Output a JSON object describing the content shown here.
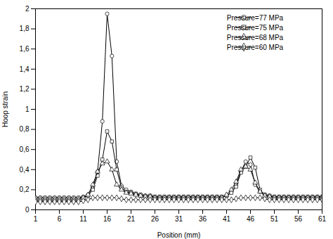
{
  "chart_data": {
    "type": "line",
    "xlabel": "Position (mm)",
    "ylabel": "Hoop strain",
    "xlim": [
      1,
      61
    ],
    "ylim": [
      0,
      2
    ],
    "xticks": [
      1,
      6,
      11,
      16,
      21,
      26,
      31,
      36,
      41,
      46,
      51,
      56,
      61
    ],
    "yticks": [
      0,
      {
        "value": 0.2,
        "label": "0,2"
      },
      {
        "value": 0.4,
        "label": "0,4"
      },
      {
        "value": 0.6,
        "label": "0,6"
      },
      {
        "value": 0.8,
        "label": "0,8"
      },
      1,
      {
        "value": 1.2,
        "label": "1,2"
      },
      {
        "value": 1.4,
        "label": "1,4"
      },
      {
        "value": 1.6,
        "label": "1,6"
      },
      {
        "value": 1.8,
        "label": "1,8"
      },
      2
    ],
    "grid": false,
    "legend": "upper right",
    "x": [
      1,
      2,
      3,
      4,
      5,
      6,
      7,
      8,
      9,
      10,
      11,
      12,
      13,
      14,
      15,
      16,
      17,
      18,
      19,
      20,
      21,
      22,
      23,
      24,
      25,
      26,
      27,
      28,
      29,
      30,
      31,
      32,
      33,
      34,
      35,
      36,
      37,
      38,
      39,
      40,
      41,
      42,
      43,
      44,
      45,
      46,
      47,
      48,
      49,
      50,
      51,
      52,
      53,
      54,
      55,
      56,
      57,
      58,
      59,
      60,
      61
    ],
    "series": [
      {
        "name": "Pressure=77 MPa",
        "color": "black",
        "marker": "circle",
        "values": [
          0.12,
          0.12,
          0.12,
          0.12,
          0.12,
          0.12,
          0.12,
          0.12,
          0.12,
          0.12,
          0.13,
          0.15,
          0.22,
          0.38,
          0.88,
          1.95,
          1.53,
          0.48,
          0.24,
          0.2,
          0.18,
          0.16,
          0.15,
          0.14,
          0.14,
          0.13,
          0.13,
          0.13,
          0.13,
          0.13,
          0.13,
          0.13,
          0.13,
          0.13,
          0.13,
          0.13,
          0.13,
          0.13,
          0.13,
          0.13,
          0.14,
          0.18,
          0.25,
          0.38,
          0.48,
          0.45,
          0.25,
          0.18,
          0.15,
          0.14,
          0.13,
          0.13,
          0.13,
          0.13,
          0.13,
          0.13,
          0.13,
          0.13,
          0.13,
          0.13,
          0.13
        ]
      },
      {
        "name": "Pressure=75 MPa",
        "color": "black",
        "marker": "square",
        "values": [
          0.12,
          0.12,
          0.12,
          0.12,
          0.12,
          0.12,
          0.12,
          0.12,
          0.12,
          0.12,
          0.12,
          0.14,
          0.2,
          0.34,
          0.5,
          0.78,
          0.68,
          0.4,
          0.22,
          0.18,
          0.17,
          0.16,
          0.15,
          0.14,
          0.14,
          0.13,
          0.13,
          0.13,
          0.13,
          0.13,
          0.13,
          0.13,
          0.13,
          0.13,
          0.13,
          0.13,
          0.13,
          0.13,
          0.13,
          0.13,
          0.14,
          0.17,
          0.23,
          0.37,
          0.43,
          0.52,
          0.42,
          0.2,
          0.15,
          0.14,
          0.13,
          0.13,
          0.13,
          0.13,
          0.13,
          0.13,
          0.13,
          0.13,
          0.13,
          0.13,
          0.13
        ]
      },
      {
        "name": "Pressure=68 MPa",
        "color": "black",
        "marker": "triangle",
        "values": [
          0.1,
          0.1,
          0.1,
          0.1,
          0.1,
          0.1,
          0.1,
          0.1,
          0.1,
          0.1,
          0.12,
          0.15,
          0.25,
          0.38,
          0.46,
          0.48,
          0.4,
          0.25,
          0.2,
          0.17,
          0.16,
          0.15,
          0.14,
          0.13,
          0.13,
          0.12,
          0.12,
          0.12,
          0.12,
          0.12,
          0.12,
          0.12,
          0.12,
          0.12,
          0.12,
          0.12,
          0.12,
          0.12,
          0.12,
          0.12,
          0.15,
          0.2,
          0.28,
          0.4,
          0.43,
          0.4,
          0.27,
          0.18,
          0.14,
          0.13,
          0.12,
          0.12,
          0.12,
          0.12,
          0.12,
          0.12,
          0.12,
          0.12,
          0.12,
          0.12,
          0.12
        ]
      },
      {
        "name": "Pressure=60 MPa",
        "color": "black",
        "marker": "diamond",
        "values": [
          0.08,
          0.08,
          0.08,
          0.08,
          0.08,
          0.08,
          0.08,
          0.08,
          0.08,
          0.08,
          0.09,
          0.1,
          0.12,
          0.12,
          0.12,
          0.12,
          0.12,
          0.12,
          0.11,
          0.1,
          0.1,
          0.1,
          0.1,
          0.1,
          0.1,
          0.1,
          0.1,
          0.1,
          0.1,
          0.1,
          0.1,
          0.1,
          0.1,
          0.1,
          0.1,
          0.1,
          0.1,
          0.1,
          0.1,
          0.1,
          0.1,
          0.1,
          0.11,
          0.12,
          0.12,
          0.12,
          0.12,
          0.12,
          0.11,
          0.1,
          0.1,
          0.1,
          0.1,
          0.1,
          0.1,
          0.1,
          0.1,
          0.1,
          0.1,
          0.1,
          0.1
        ]
      }
    ]
  }
}
